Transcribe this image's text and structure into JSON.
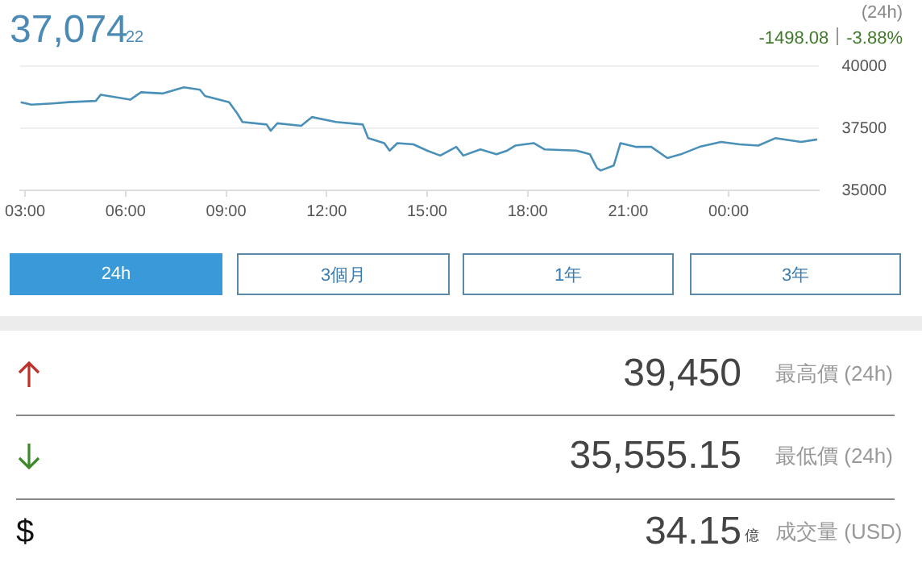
{
  "chart_data": {
    "type": "line",
    "title": "37,074",
    "annotations": [
      "22",
      "(24h)",
      "-1498.08",
      "-3.88%",
      "24h",
      "3個月",
      "1年",
      "3年",
      "39,450",
      "最高價 (24h)",
      "35,555.15",
      "最低價 (24h)",
      "34.15",
      "億",
      "成交量 (USD)",
      "$"
    ],
    "x": [
      2.87,
      3.19,
      3.83,
      4.31,
      5.11,
      5.26,
      6.14,
      6.46,
      7.1,
      7.74,
      8.22,
      8.37,
      9.09,
      9.33,
      9.49,
      10.21,
      10.33,
      10.53,
      11.24,
      11.56,
      12.28,
      13.08,
      13.24,
      13.72,
      13.88,
      14.11,
      14.59,
      15.0,
      15.39,
      15.87,
      16.08,
      16.59,
      17.07,
      17.39,
      17.63,
      18.18,
      18.5,
      19.46,
      19.86,
      20.07,
      20.18,
      20.57,
      20.77,
      21.22,
      21.69,
      22.17,
      22.57,
      23.13,
      23.77,
      24.33,
      24.88,
      25.39,
      26.16,
      26.64
    ],
    "series": [
      {
        "color": "#4a90b8",
        "values": [
          38550,
          38450,
          38500,
          38550,
          38600,
          38850,
          38650,
          38950,
          38900,
          39150,
          39050,
          38800,
          38550,
          38100,
          37750,
          37650,
          37400,
          37700,
          37600,
          37950,
          37750,
          37650,
          37100,
          36900,
          36600,
          36900,
          36850,
          36600,
          36400,
          36750,
          36400,
          36650,
          36450,
          36600,
          36800,
          36900,
          36650,
          36600,
          36450,
          35900,
          35800,
          36000,
          36900,
          36750,
          36750,
          36300,
          36450,
          36750,
          36950,
          36850,
          36800,
          37100,
          36950,
          37050
        ]
      }
    ],
    "xlim": [
      2.85,
      26.7
    ],
    "xticks": [
      {
        "value": 3,
        "label": "03:00"
      },
      {
        "value": 6,
        "label": "06:00"
      },
      {
        "value": 9,
        "label": "09:00"
      },
      {
        "value": 12,
        "label": "12:00"
      },
      {
        "value": 15,
        "label": "15:00"
      },
      {
        "value": 18,
        "label": "18:00"
      },
      {
        "value": 21,
        "label": "21:00"
      },
      {
        "value": 24,
        "label": "00:00"
      }
    ],
    "ylim": [
      35000,
      40000
    ],
    "yticks": [
      35000,
      37500,
      40000
    ],
    "grid": "y",
    "legend": false,
    "marker": "none",
    "line_style": "solid"
  }
}
